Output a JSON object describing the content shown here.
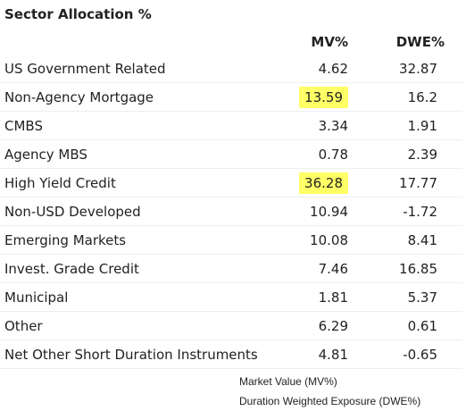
{
  "header": {
    "title": "Sector Allocation %"
  },
  "table": {
    "columns": [
      "MV%",
      "DWE%"
    ],
    "rows": [
      [
        "US Government Related",
        "4.62",
        "32.87"
      ],
      [
        "Non-Agency Mortgage",
        "13.59",
        "16.2"
      ],
      [
        "CMBS",
        "3.34",
        "1.91"
      ],
      [
        "Agency MBS",
        "0.78",
        "2.39"
      ],
      [
        "High Yield Credit",
        "36.28",
        "17.77"
      ],
      [
        "Non-USD Developed",
        "10.94",
        "-1.72"
      ],
      [
        "Emerging Markets",
        "10.08",
        "8.41"
      ],
      [
        "Invest. Grade Credit",
        "7.46",
        "16.85"
      ],
      [
        "Municipal",
        "1.81",
        "5.37"
      ],
      [
        "Other",
        "6.29",
        "0.61"
      ],
      [
        "Net Other Short Duration Instruments",
        "4.81",
        "-0.65"
      ]
    ]
  },
  "footnotes": [
    "Market Value (MV%)",
    "Duration Weighted Exposure (DWE%)"
  ]
}
